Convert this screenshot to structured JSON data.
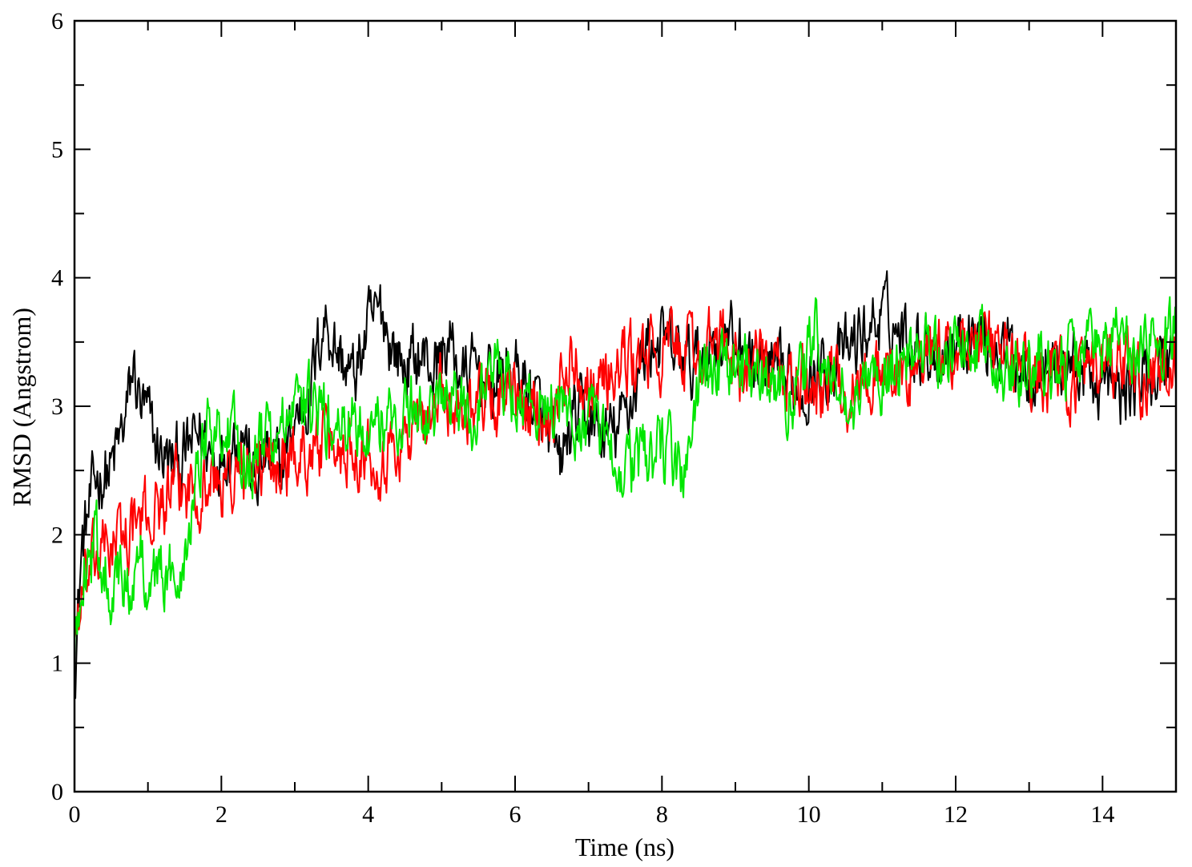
{
  "chart_data": {
    "type": "line",
    "title": "",
    "xlabel": "Time (ns)",
    "ylabel": "RMSD (Angstrom)",
    "xlim": [
      0,
      15
    ],
    "ylim": [
      0,
      6
    ],
    "xticks": [
      0,
      2,
      4,
      6,
      8,
      10,
      12,
      14
    ],
    "yticks": [
      0,
      1,
      2,
      3,
      4,
      5,
      6
    ],
    "grid": false,
    "legend": "none",
    "series": [
      {
        "color": "#000000",
        "x": [
          0,
          0.1,
          0.2,
          0.3,
          0.5,
          0.7,
          0.8,
          0.9,
          1.0,
          1.1,
          1.3,
          1.5,
          1.7,
          1.9,
          2.1,
          2.3,
          2.45,
          2.6,
          2.8,
          3.0,
          3.2,
          3.4,
          3.6,
          3.8,
          4.0,
          4.2,
          4.3,
          4.5,
          4.7,
          4.9,
          5.1,
          5.3,
          5.5,
          5.7,
          5.9,
          6.1,
          6.3,
          6.5,
          6.6,
          6.8,
          7.0,
          7.2,
          7.4,
          7.6,
          7.8,
          8.0,
          8.2,
          8.4,
          8.6,
          8.8,
          9.0,
          9.3,
          9.6,
          9.9,
          10.2,
          10.5,
          10.8,
          11.0,
          11.2,
          11.5,
          11.8,
          12.0,
          12.2,
          12.5,
          12.8,
          13.0,
          13.3,
          13.6,
          13.9,
          14.2,
          14.5,
          14.8,
          15.0
        ],
        "y": [
          0.95,
          1.9,
          2.2,
          2.45,
          2.5,
          2.9,
          3.3,
          3.0,
          2.9,
          2.7,
          2.55,
          2.6,
          2.8,
          2.6,
          2.7,
          2.85,
          2.35,
          2.6,
          2.5,
          2.9,
          3.1,
          3.7,
          3.4,
          3.2,
          3.6,
          3.75,
          3.5,
          3.3,
          3.4,
          3.3,
          3.5,
          3.2,
          3.3,
          3.15,
          3.3,
          3.2,
          3.0,
          2.7,
          2.5,
          2.9,
          2.9,
          2.75,
          2.8,
          3.1,
          3.5,
          3.5,
          3.4,
          3.3,
          3.45,
          3.55,
          3.5,
          3.3,
          3.2,
          3.15,
          3.3,
          3.4,
          3.6,
          3.7,
          3.6,
          3.5,
          3.4,
          3.5,
          3.6,
          3.5,
          3.4,
          3.3,
          3.3,
          3.35,
          3.2,
          3.1,
          3.2,
          3.3,
          3.5
        ]
      },
      {
        "color": "#ff0000",
        "x": [
          0,
          0.1,
          0.3,
          0.5,
          0.7,
          0.9,
          1.1,
          1.3,
          1.5,
          1.8,
          2.0,
          2.2,
          2.5,
          2.8,
          3.0,
          3.3,
          3.6,
          3.9,
          4.2,
          4.5,
          4.8,
          5.0,
          5.3,
          5.6,
          5.9,
          6.2,
          6.5,
          6.8,
          7.0,
          7.3,
          7.6,
          7.9,
          8.2,
          8.5,
          8.8,
          9.1,
          9.4,
          9.7,
          10.0,
          10.3,
          10.6,
          10.9,
          11.2,
          11.5,
          11.8,
          12.1,
          12.4,
          12.7,
          13.0,
          13.3,
          13.6,
          13.9,
          14.2,
          14.5,
          14.8,
          15.0
        ],
        "y": [
          1.25,
          1.5,
          1.8,
          1.95,
          2.0,
          2.1,
          2.2,
          2.3,
          2.35,
          2.4,
          2.4,
          2.45,
          2.5,
          2.55,
          2.6,
          2.7,
          2.65,
          2.7,
          2.6,
          2.75,
          2.9,
          3.1,
          3.0,
          3.1,
          3.05,
          2.95,
          3.0,
          3.4,
          3.2,
          3.25,
          3.35,
          3.4,
          3.45,
          3.4,
          3.5,
          3.3,
          3.3,
          3.2,
          3.15,
          3.2,
          3.1,
          3.3,
          3.2,
          3.3,
          3.4,
          3.5,
          3.45,
          3.4,
          3.3,
          3.25,
          3.2,
          3.2,
          3.3,
          3.2,
          3.25,
          3.35
        ]
      },
      {
        "color": "#00e600",
        "x": [
          0,
          0.1,
          0.3,
          0.5,
          0.7,
          0.9,
          1.1,
          1.3,
          1.5,
          1.7,
          1.85,
          2.0,
          2.2,
          2.4,
          2.6,
          2.8,
          3.0,
          3.2,
          3.4,
          3.6,
          3.8,
          4.0,
          4.2,
          4.4,
          4.6,
          4.8,
          5.0,
          5.2,
          5.4,
          5.6,
          5.8,
          6.0,
          6.2,
          6.4,
          6.6,
          6.8,
          7.0,
          7.2,
          7.4,
          7.6,
          7.8,
          8.0,
          8.2,
          8.35,
          8.5,
          8.7,
          9.0,
          9.3,
          9.6,
          9.9,
          10.1,
          10.3,
          10.6,
          10.9,
          11.2,
          11.5,
          11.8,
          12.1,
          12.4,
          12.7,
          13.0,
          13.3,
          13.6,
          13.9,
          14.2,
          14.5,
          14.8,
          15.0
        ],
        "y": [
          1.0,
          1.8,
          1.9,
          1.65,
          1.6,
          1.75,
          1.7,
          1.65,
          1.9,
          2.6,
          2.95,
          2.8,
          2.7,
          2.6,
          2.75,
          2.8,
          2.9,
          3.0,
          2.9,
          2.8,
          2.85,
          2.9,
          2.85,
          2.95,
          3.0,
          2.9,
          3.05,
          3.0,
          2.9,
          3.2,
          3.3,
          3.1,
          3.0,
          3.1,
          2.9,
          2.85,
          2.9,
          2.7,
          2.6,
          2.5,
          2.65,
          2.6,
          2.55,
          2.5,
          3.2,
          3.25,
          3.3,
          3.2,
          3.1,
          3.15,
          3.6,
          3.2,
          3.0,
          3.2,
          3.3,
          3.4,
          3.45,
          3.5,
          3.4,
          3.35,
          3.3,
          3.35,
          3.4,
          3.45,
          3.5,
          3.45,
          3.55,
          3.6
        ]
      }
    ]
  }
}
